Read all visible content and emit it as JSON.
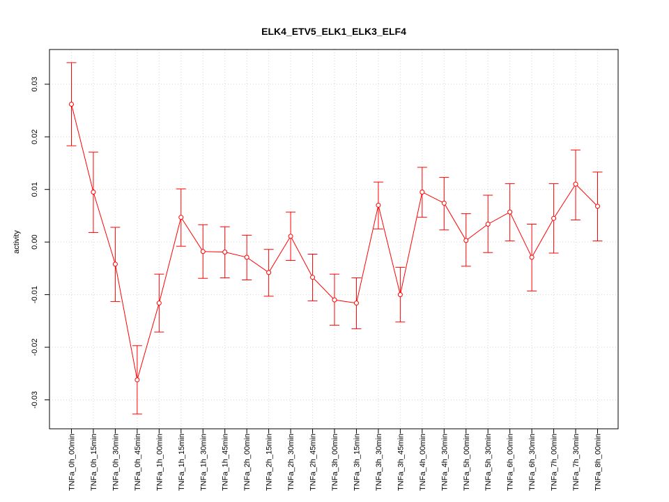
{
  "chart_data": {
    "type": "line",
    "title": "ELK4_ETV5_ELK1_ELK3_ELF4",
    "xlabel": "",
    "ylabel": "activity",
    "ylim": [
      -0.0355,
      0.0366
    ],
    "yticks": [
      -0.03,
      -0.02,
      -0.01,
      0.0,
      0.01,
      0.02,
      0.03
    ],
    "ytick_labels": [
      "-0.03",
      "-0.02",
      "-0.01",
      "0.00",
      "0.01",
      "0.02",
      "0.03"
    ],
    "grid": true,
    "color": "#ff0000",
    "categories": [
      "TNFa_0h_00min",
      "TNFa_0h_15min",
      "TNFa_0h_30min",
      "TNFa_0h_45min",
      "TNFa_1h_00min",
      "TNFa_1h_15min",
      "TNFa_1h_30min",
      "TNFa_1h_45min",
      "TNFa_2h_00min",
      "TNFa_2h_15min",
      "TNFa_2h_30min",
      "TNFa_2h_45min",
      "TNFa_3h_00min",
      "TNFa_3h_15min",
      "TNFa_3h_30min",
      "TNFa_3h_45min",
      "TNFa_4h_00min",
      "TNFa_4h_30min",
      "TNFa_5h_00min",
      "TNFa_5h_30min",
      "TNFa_6h_00min",
      "TNFa_6h_30min",
      "TNFa_7h_00min",
      "TNFa_7h_30min",
      "TNFa_8h_00min"
    ],
    "values": [
      0.0262,
      0.0095,
      -0.0042,
      -0.0262,
      -0.0116,
      0.0047,
      -0.0018,
      -0.0019,
      -0.0029,
      -0.0058,
      0.0011,
      -0.0067,
      -0.011,
      -0.0116,
      0.007,
      -0.01,
      0.0095,
      0.0074,
      0.0003,
      0.0034,
      0.0057,
      -0.0029,
      0.0045,
      0.011,
      0.0068
    ],
    "upper": [
      0.0341,
      0.0171,
      0.0028,
      -0.0197,
      -0.0061,
      0.0101,
      0.0033,
      0.0029,
      0.0013,
      -0.0014,
      0.0057,
      -0.0023,
      -0.0061,
      -0.0068,
      0.0114,
      -0.0048,
      0.0142,
      0.0123,
      0.0054,
      0.0089,
      0.0111,
      0.0034,
      0.0111,
      0.0175,
      0.0133
    ],
    "lower": [
      0.0183,
      0.0018,
      -0.0113,
      -0.0327,
      -0.0171,
      -0.0008,
      -0.0069,
      -0.0068,
      -0.0072,
      -0.0103,
      -0.0035,
      -0.0112,
      -0.0158,
      -0.0165,
      0.0025,
      -0.0152,
      0.0047,
      0.0023,
      -0.0046,
      -0.002,
      0.0002,
      -0.0093,
      -0.0021,
      0.0042,
      0.0002
    ]
  }
}
